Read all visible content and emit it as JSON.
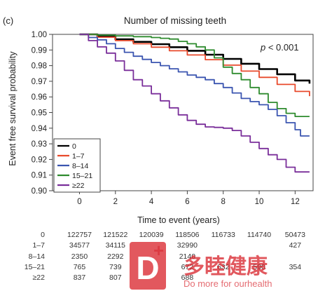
{
  "panel_label": "(c)",
  "watermark": {
    "text": "多睦健康",
    "sub": "Do more for ourhealth",
    "letter": "D"
  },
  "chart_data": {
    "type": "line",
    "title": "Number of missing teeth",
    "xlabel": "Time to event (years)",
    "ylabel": "Event free survival probability",
    "annotation": {
      "italic": "p",
      "text": " < 0.001"
    },
    "xlim": [
      -1.5,
      13.0
    ],
    "ylim": [
      0.9,
      1.0
    ],
    "xticks": [
      0,
      2,
      4,
      6,
      8,
      10,
      12
    ],
    "yticks": [
      0.9,
      0.91,
      0.92,
      0.93,
      0.94,
      0.95,
      0.96,
      0.97,
      0.98,
      0.99,
      1.0
    ],
    "ytick_labels": [
      "0.90",
      "0.91",
      "0.92",
      "0.93",
      "0.94",
      "0.95",
      "0.96",
      "0.97",
      "0.98",
      "0.99",
      "1.00"
    ],
    "legend_position": "bottom-left",
    "series": [
      {
        "name": "0",
        "color": "#000000",
        "x": [
          0,
          1,
          2,
          3,
          4,
          5,
          6,
          7,
          8,
          9,
          10,
          11,
          12,
          12.8
        ],
        "y": [
          1.0,
          0.9985,
          0.9968,
          0.9952,
          0.9937,
          0.9918,
          0.9895,
          0.987,
          0.9843,
          0.9812,
          0.9778,
          0.9745,
          0.9705,
          0.9685
        ]
      },
      {
        "name": "1–7",
        "color": "#e84a2c",
        "x": [
          0,
          1,
          2,
          3,
          4,
          5,
          6,
          7,
          8,
          9,
          10,
          11,
          12,
          12.8
        ],
        "y": [
          1.0,
          0.9982,
          0.996,
          0.994,
          0.9918,
          0.9895,
          0.9868,
          0.9838,
          0.9803,
          0.9765,
          0.9725,
          0.968,
          0.9635,
          0.9605
        ]
      },
      {
        "name": "8–14",
        "color": "#3b55b0",
        "x": [
          0,
          0.5,
          1,
          1.5,
          2,
          2.5,
          3,
          3.5,
          4,
          4.5,
          5,
          5.5,
          6,
          6.5,
          7,
          7.5,
          8,
          8.5,
          9,
          9.5,
          10,
          10.5,
          11,
          11.5,
          12,
          12.3,
          12.8
        ],
        "y": [
          1.0,
          0.998,
          0.9965,
          0.994,
          0.991,
          0.9885,
          0.986,
          0.984,
          0.982,
          0.98,
          0.978,
          0.976,
          0.974,
          0.9725,
          0.971,
          0.9685,
          0.966,
          0.9625,
          0.959,
          0.957,
          0.955,
          0.952,
          0.948,
          0.9435,
          0.939,
          0.935,
          0.935
        ]
      },
      {
        "name": "15–21",
        "color": "#2e8b2e",
        "x": [
          0,
          1,
          2,
          3,
          4,
          4.5,
          5,
          5.5,
          6,
          6.5,
          7,
          7.5,
          8,
          8.5,
          9,
          9.5,
          10,
          10.5,
          11,
          11.5,
          12,
          12.8
        ],
        "y": [
          1.0,
          0.9995,
          0.999,
          0.9985,
          0.998,
          0.9975,
          0.997,
          0.9955,
          0.994,
          0.992,
          0.99,
          0.985,
          0.979,
          0.975,
          0.971,
          0.966,
          0.962,
          0.9565,
          0.9525,
          0.9495,
          0.9475,
          0.9475
        ]
      },
      {
        "name": "≥22",
        "color": "#7a2f9a",
        "x": [
          0,
          0.5,
          1,
          1.5,
          2,
          2.5,
          3,
          3.5,
          4,
          4.5,
          5,
          5.5,
          6,
          6.5,
          7,
          7.5,
          8,
          8.5,
          9,
          9.5,
          10,
          10.5,
          11,
          11.5,
          12,
          12.3,
          12.8
        ],
        "y": [
          1.0,
          0.996,
          0.992,
          0.988,
          0.983,
          0.977,
          0.971,
          0.967,
          0.962,
          0.9575,
          0.953,
          0.9485,
          0.945,
          0.9425,
          0.9408,
          0.9405,
          0.94,
          0.9385,
          0.935,
          0.931,
          0.927,
          0.923,
          0.92,
          0.915,
          0.912,
          0.912,
          0.912
        ]
      }
    ],
    "risk_table": {
      "times": [
        0,
        2,
        4,
        6,
        8,
        10,
        12
      ],
      "rows": [
        {
          "label": "0",
          "values": [
            "122757",
            "121522",
            "120039",
            "118506",
            "116733",
            "114740",
            "50473"
          ]
        },
        {
          "label": "1–7",
          "values": [
            "34577",
            "34115",
            "",
            "32990",
            "",
            "",
            "427"
          ]
        },
        {
          "label": "8–14",
          "values": [
            "2350",
            "2292",
            "",
            "2140",
            "",
            "",
            ""
          ]
        },
        {
          "label": "15–21",
          "values": [
            "765",
            "739",
            "",
            "672",
            "632",
            "590",
            "354"
          ]
        },
        {
          "label": "≥22",
          "values": [
            "837",
            "807",
            "",
            "688",
            "",
            "",
            ""
          ]
        }
      ]
    }
  }
}
